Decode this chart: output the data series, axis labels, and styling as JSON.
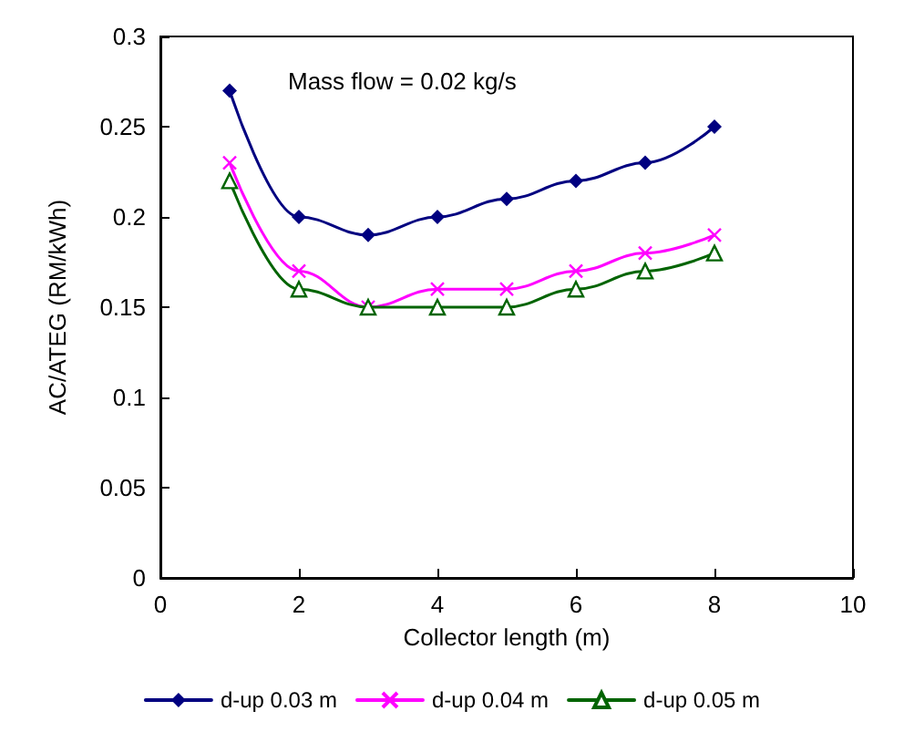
{
  "chart_data": {
    "type": "line",
    "xlabel": "Collector length (m)",
    "ylabel": "AC/ATEG (RM/kWh)",
    "x": [
      1,
      2,
      3,
      4,
      5,
      6,
      7,
      8
    ],
    "series": [
      {
        "name": "d-up 0.03 m",
        "color": "#000080",
        "marker": "diamond",
        "values": [
          0.27,
          0.2,
          0.19,
          0.2,
          0.21,
          0.22,
          0.23,
          0.25
        ]
      },
      {
        "name": "d-up 0.04 m",
        "color": "#ff00ff",
        "marker": "cross",
        "values": [
          0.23,
          0.17,
          0.15,
          0.16,
          0.16,
          0.17,
          0.18,
          0.19
        ]
      },
      {
        "name": "d-up 0.05 m",
        "color": "#006400",
        "marker": "triangle",
        "values": [
          0.22,
          0.16,
          0.15,
          0.15,
          0.15,
          0.16,
          0.17,
          0.18
        ]
      }
    ],
    "xlim": [
      0,
      10
    ],
    "xticks": [
      0,
      2,
      4,
      6,
      8,
      10
    ],
    "ylim": [
      0,
      0.3
    ],
    "yticks": [
      0,
      0.05,
      0.1,
      0.15,
      0.2,
      0.25,
      0.3
    ],
    "grid": false,
    "legend": "bottom",
    "line_style": "solid",
    "annotations": [
      "Mass flow = 0.02 kg/s"
    ]
  }
}
